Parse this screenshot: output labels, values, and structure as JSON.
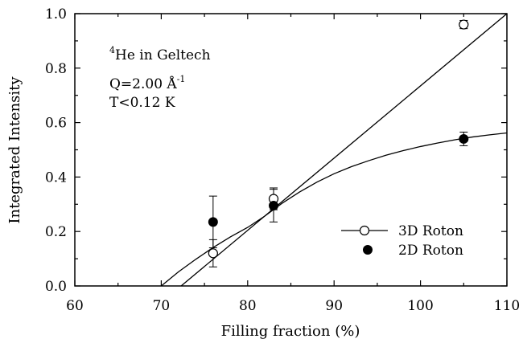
{
  "chart_data": {
    "type": "scatter",
    "xlabel": "Filling fraction (%)",
    "ylabel": "Integrated Intensity",
    "xlim": [
      60,
      110
    ],
    "ylim": [
      0.0,
      1.0
    ],
    "xticks": [
      "60",
      "70",
      "80",
      "90",
      "100",
      "110"
    ],
    "yticks": [
      "0.0",
      "0.2",
      "0.4",
      "0.6",
      "0.8",
      "1.0"
    ],
    "grid": false,
    "legend_position": "bottom-right",
    "annotations": {
      "sample": "He in Geltech",
      "isotope": "4",
      "q_value": "Q=2.00 Å",
      "q_exponent": "-1",
      "temperature": "T<0.12 K"
    },
    "series": [
      {
        "name": "3D Roton",
        "marker": "open-circle",
        "x": [
          76,
          83,
          105
        ],
        "y": [
          0.12,
          0.32,
          0.96
        ],
        "yerr": [
          0.05,
          0.04,
          0.015
        ],
        "fit": {
          "kind": "linear",
          "x": [
            72.3,
            110
          ],
          "y": [
            0.0,
            1.0
          ]
        }
      },
      {
        "name": "2D Roton",
        "marker": "filled-circle",
        "x": [
          76,
          83,
          105
        ],
        "y": [
          0.235,
          0.295,
          0.54
        ],
        "yerr": [
          0.095,
          0.06,
          0.025
        ],
        "fit": {
          "kind": "curve",
          "x": [
            70.0,
            72,
            74,
            76,
            78,
            80,
            82,
            84,
            86,
            88,
            90,
            92,
            94,
            96,
            98,
            100,
            102,
            104,
            106,
            108,
            110
          ],
          "y": [
            0.0,
            0.052,
            0.098,
            0.141,
            0.18,
            0.215,
            0.257,
            0.304,
            0.345,
            0.381,
            0.412,
            0.438,
            0.46,
            0.48,
            0.497,
            0.512,
            0.525,
            0.537,
            0.547,
            0.555,
            0.562
          ]
        }
      }
    ]
  }
}
